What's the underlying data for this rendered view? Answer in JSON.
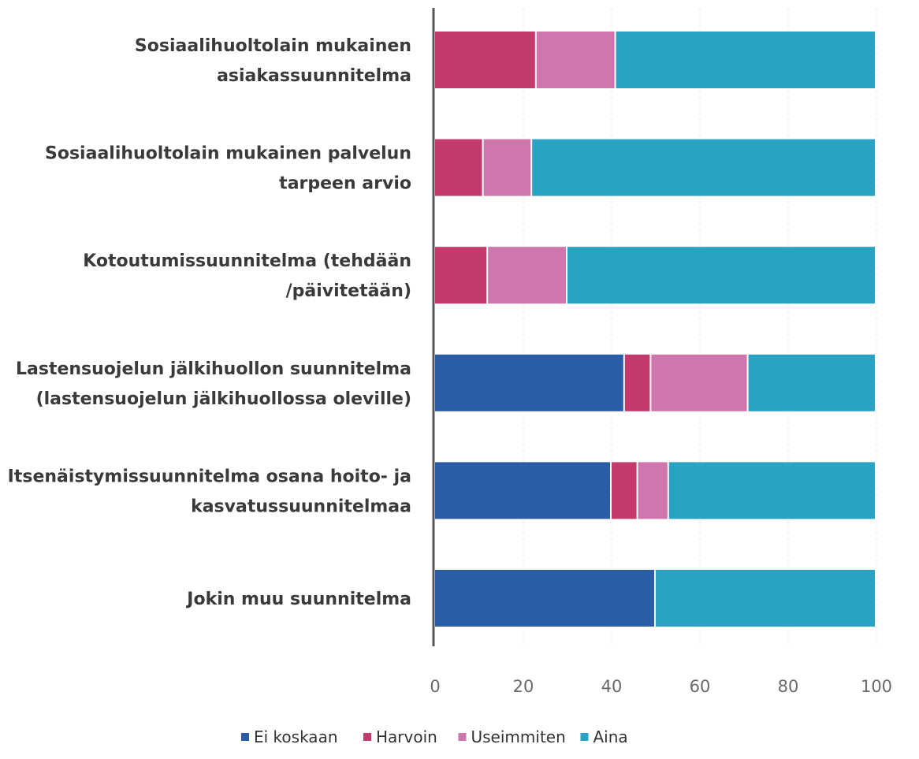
{
  "chart_data": {
    "type": "bar",
    "orientation": "horizontal",
    "stacked": true,
    "categories": [
      [
        "Sosiaalihuoltolain mukainen",
        "asiakassuunnitelma"
      ],
      [
        "Sosiaalihuoltolain mukainen palvelun",
        "tarpeen arvio"
      ],
      [
        "Kotoutumissuunnitelma (tehdään",
        "/päivitetään)"
      ],
      [
        "Lastensuojelun jälkihuollon suunnitelma",
        "(lastensuojelun jälkihuollossa oleville)"
      ],
      [
        "Itsenäistymissuunnitelma osana hoito- ja",
        "kasvatussuunnitelmaa"
      ],
      [
        "Jokin muu suunnitelma"
      ]
    ],
    "series": [
      {
        "name": "Ei koskaan",
        "color": "#2b5ca6",
        "values": [
          0,
          0,
          0,
          43,
          40,
          50
        ]
      },
      {
        "name": "Harvoin",
        "color": "#c33b6e",
        "values": [
          23,
          11,
          12,
          6,
          6,
          0
        ]
      },
      {
        "name": "Useimmiten",
        "color": "#cf76ad",
        "values": [
          18,
          11,
          18,
          22,
          7,
          0
        ]
      },
      {
        "name": "Aina",
        "color": "#2aa3c3",
        "values": [
          59,
          78,
          70,
          29,
          47,
          50
        ]
      }
    ],
    "xticks": [
      "0",
      "20",
      "40",
      "60",
      "80",
      "100"
    ],
    "xlim": [
      0,
      100
    ],
    "grid": true,
    "legend_position": "bottom",
    "title": "",
    "xlabel": "",
    "ylabel": ""
  }
}
